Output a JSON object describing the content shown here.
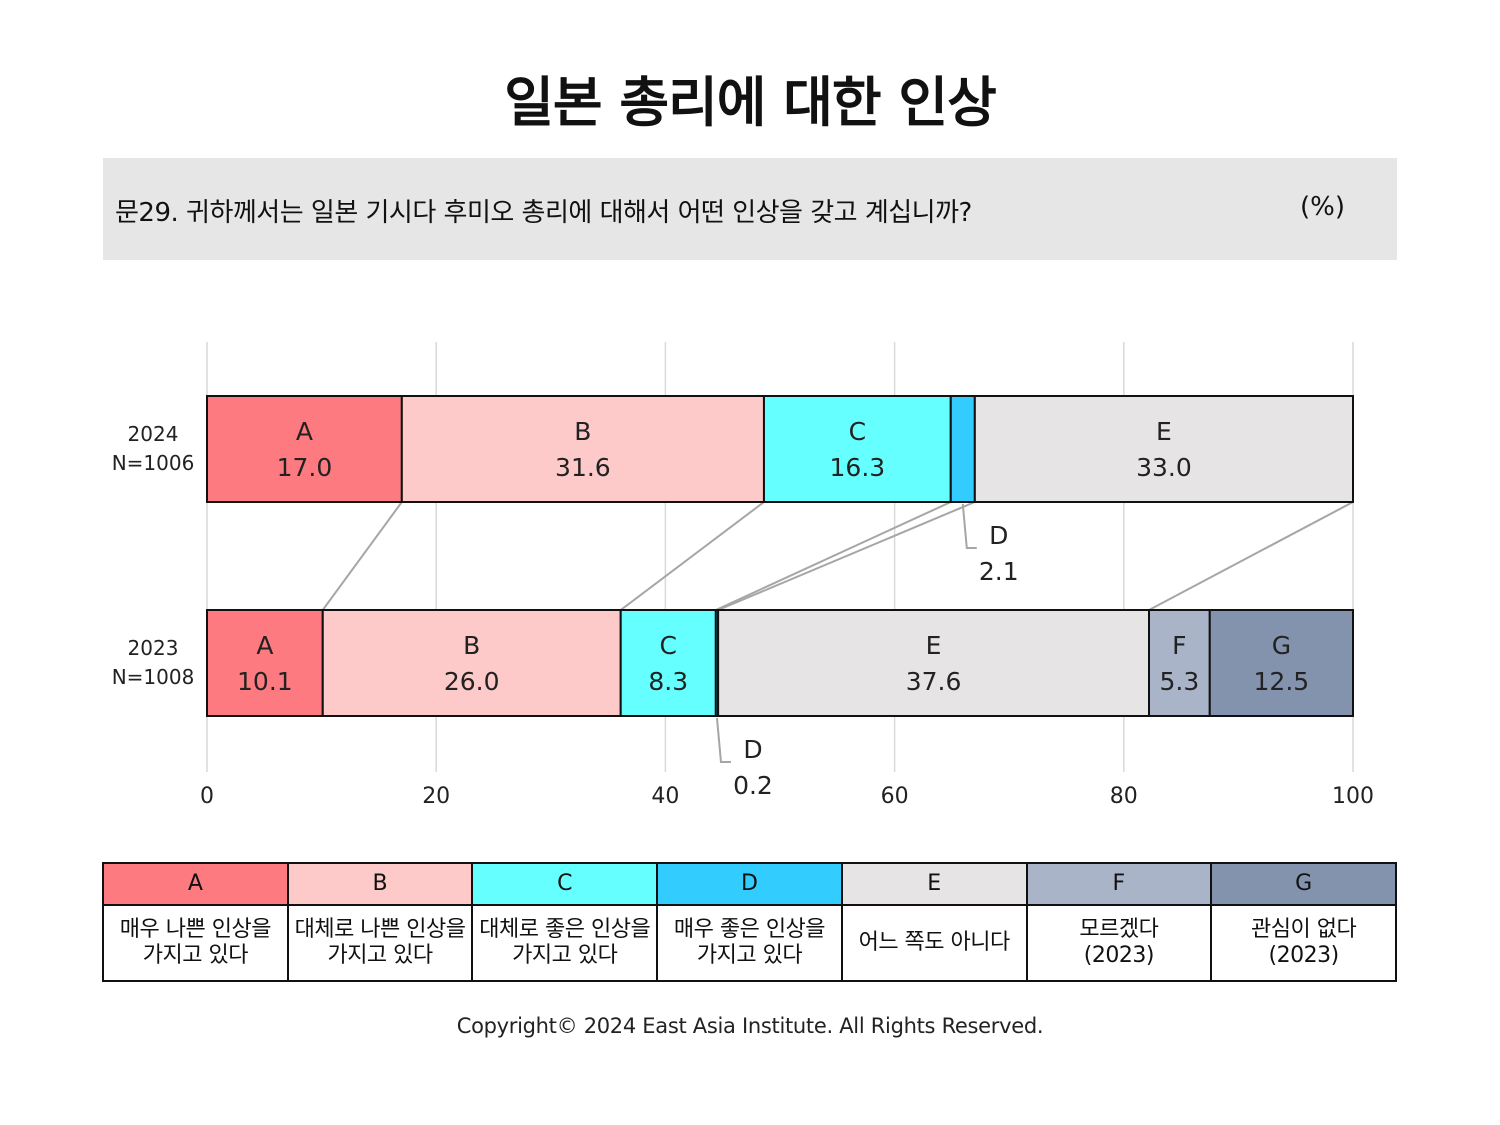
{
  "title": "일본 총리에 대한 인상",
  "question": "문29. 귀하께서는 일본 기시다 후미오 총리에 대해서 어떤 인상을 갖고 계십니까?",
  "unit": "(%)",
  "copyright": "Copyright© 2024 East Asia Institute. All Rights Reserved.",
  "colors": {
    "A": "#fd7b80",
    "B": "#fdc9c9",
    "C": "#66ffff",
    "D": "#33ccff",
    "E": "#e6e4e5",
    "F": "#aab4c8",
    "G": "#8493ad",
    "connector": "#a6a6a6",
    "grid": "#d9d9d9"
  },
  "chart_data": {
    "type": "bar",
    "orientation": "horizontal-stacked",
    "xlim": [
      0,
      100
    ],
    "xticks": [
      0,
      20,
      40,
      60,
      80,
      100
    ],
    "grid": true,
    "rows": [
      {
        "label": "2024",
        "n": "N=1006",
        "segments": [
          {
            "key": "A",
            "value": 17.0,
            "text": "17.0"
          },
          {
            "key": "B",
            "value": 31.6,
            "text": "31.6"
          },
          {
            "key": "C",
            "value": 16.3,
            "text": "16.3"
          },
          {
            "key": "D",
            "value": 2.1,
            "text": "2.1",
            "callout": true
          },
          {
            "key": "E",
            "value": 33.0,
            "text": "33.0"
          }
        ]
      },
      {
        "label": "2023",
        "n": "N=1008",
        "segments": [
          {
            "key": "A",
            "value": 10.1,
            "text": "10.1"
          },
          {
            "key": "B",
            "value": 26.0,
            "text": "26.0"
          },
          {
            "key": "C",
            "value": 8.3,
            "text": "8.3"
          },
          {
            "key": "D",
            "value": 0.2,
            "text": "0.2",
            "callout": true
          },
          {
            "key": "E",
            "value": 37.6,
            "text": "37.6"
          },
          {
            "key": "F",
            "value": 5.3,
            "text": "5.3"
          },
          {
            "key": "G",
            "value": 12.5,
            "text": "12.5"
          }
        ]
      }
    ]
  },
  "legend": [
    {
      "key": "A",
      "desc": "매우 나쁜 인상을\n가지고 있다"
    },
    {
      "key": "B",
      "desc": "대체로 나쁜 인상을\n가지고 있다"
    },
    {
      "key": "C",
      "desc": "대체로 좋은 인상을\n가지고 있다"
    },
    {
      "key": "D",
      "desc": "매우 좋은 인상을\n가지고 있다"
    },
    {
      "key": "E",
      "desc": "어느 쪽도 아니다"
    },
    {
      "key": "F",
      "desc": "모르겠다\n(2023)"
    },
    {
      "key": "G",
      "desc": "관심이 없다\n(2023)"
    }
  ]
}
